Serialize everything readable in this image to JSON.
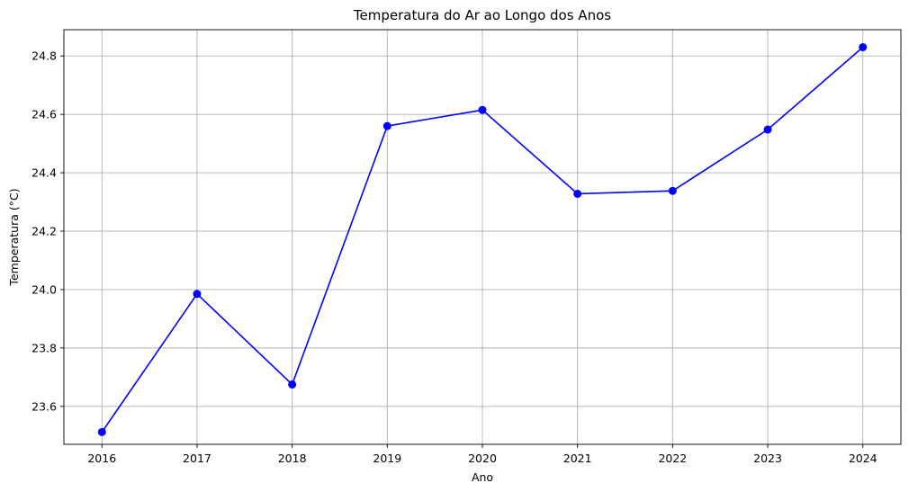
{
  "chart_data": {
    "type": "line",
    "title": "Temperatura do Ar ao Longo dos Anos",
    "xlabel": "Ano",
    "ylabel": "Temperatura (°C)",
    "x": [
      2016,
      2017,
      2018,
      2019,
      2020,
      2021,
      2022,
      2023,
      2024
    ],
    "series": [
      {
        "values": [
          23.512,
          23.985,
          23.675,
          24.56,
          24.615,
          24.328,
          24.338,
          24.548,
          24.83
        ]
      }
    ],
    "x_ticks": [
      "2016",
      "2017",
      "2018",
      "2019",
      "2020",
      "2021",
      "2022",
      "2023",
      "2024"
    ],
    "y_ticks": [
      "23.6",
      "23.8",
      "24.0",
      "24.2",
      "24.4",
      "24.6",
      "24.8"
    ],
    "xlim": [
      2015.6,
      2024.4
    ],
    "ylim": [
      23.47,
      24.89
    ],
    "grid": true,
    "line_color": "#0000ff",
    "marker": "circle"
  }
}
